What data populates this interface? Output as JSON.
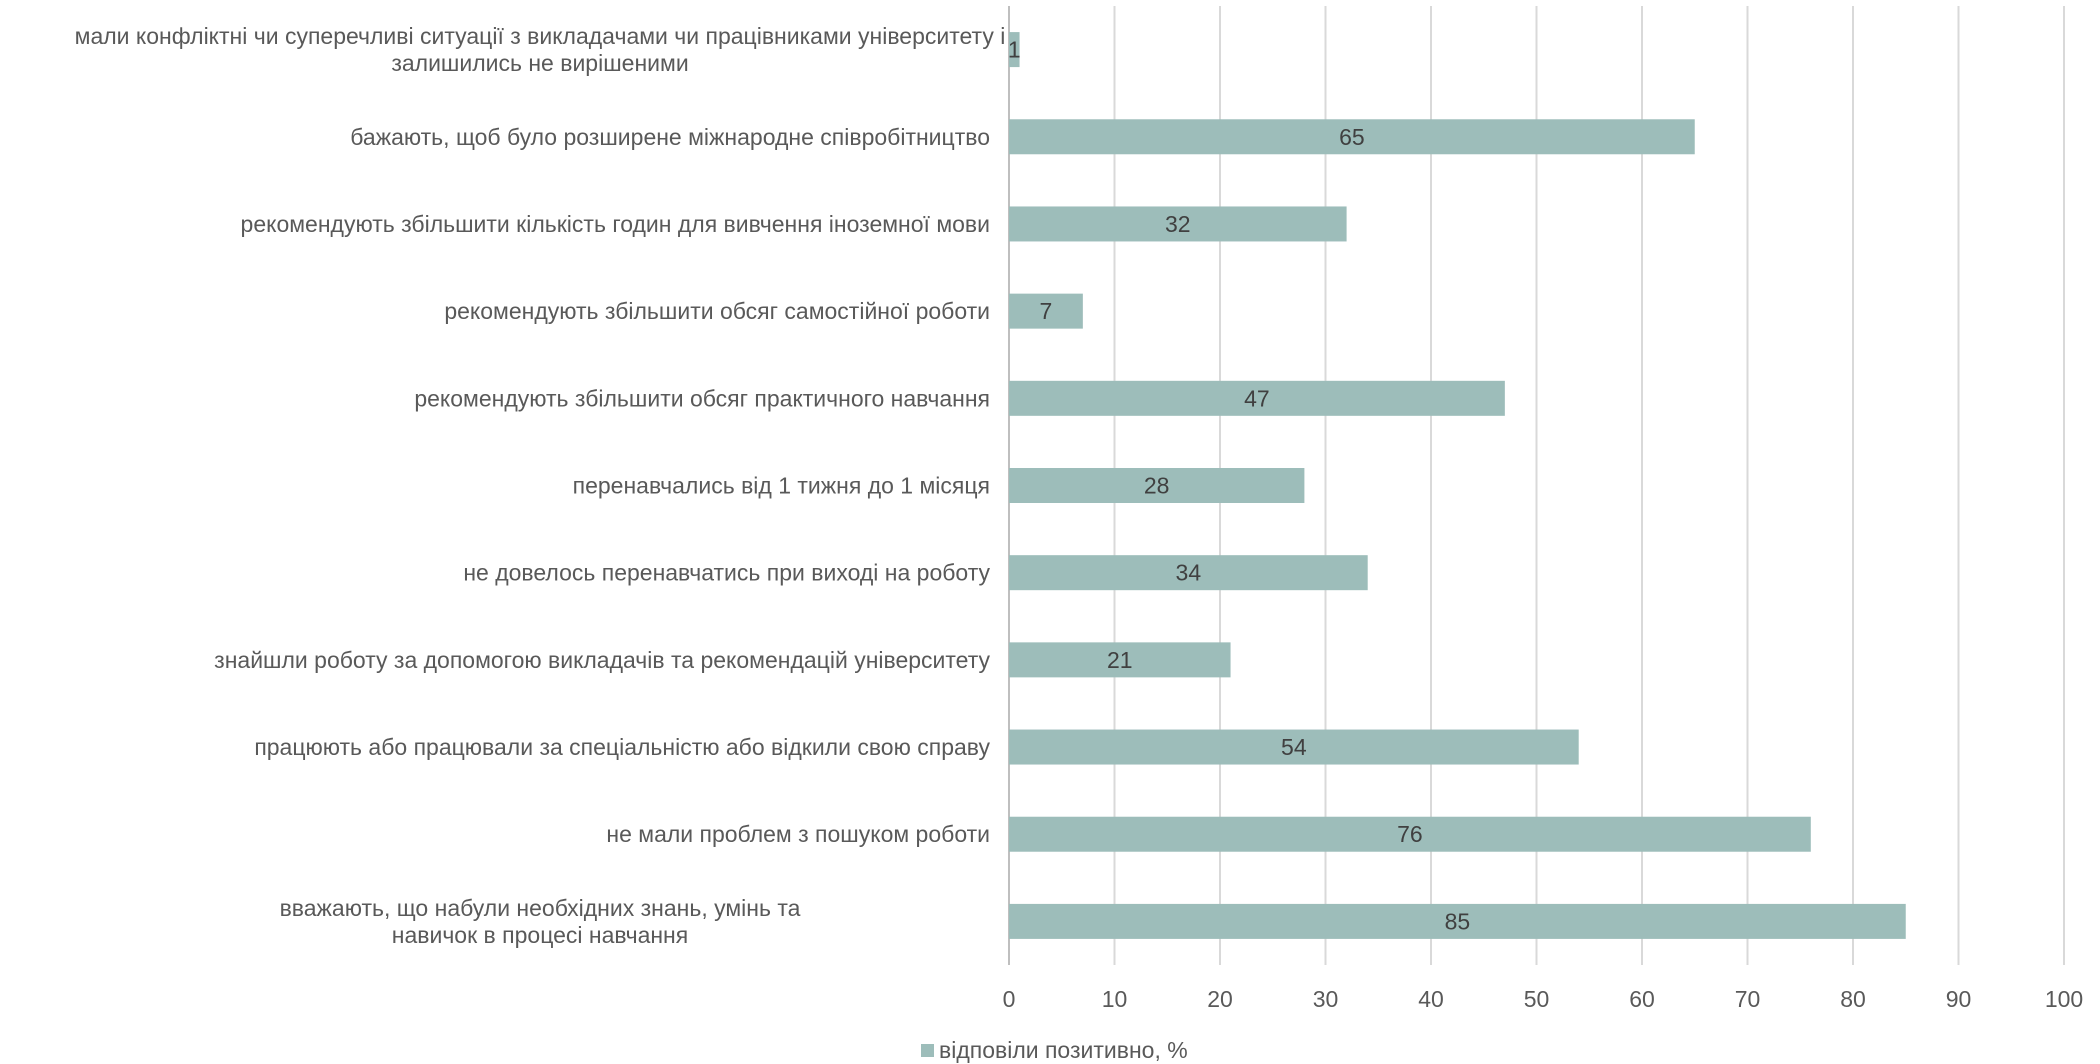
{
  "chart_data": {
    "type": "bar",
    "orientation": "horizontal",
    "categories": [
      "мали конфліктні чи суперечливі ситуації з викладачами чи працівниками університету і залишились не вирішеними",
      "бажають, щоб було розширене міжнародне співробітництво",
      "рекомендують збільшити кількість годин для вивчення іноземної мови",
      "рекомендують збільшити обсяг самостійної роботи",
      "рекомендують збільшити обсяг практичного навчання",
      "перенавчались від 1 тижня до 1 місяця",
      "не довелось перенавчатись при виході на роботу",
      "знайшли роботу за допомогою викладачів та рекомендацій університету",
      "працюють або працювали за спеціальністю або відкили свою справу",
      "не мали проблем з пошуком роботи",
      "вважають, що набули необхідних знань, умінь та навичок в процесі навчання"
    ],
    "category_lines": [
      [
        "мали конфліктні чи суперечливі ситуації з викладачами чи працівниками університету і",
        "залишились не вирішеними"
      ],
      [
        "бажають, щоб було розширене міжнародне співробітництво"
      ],
      [
        "рекомендують збільшити кількість годин для вивчення іноземної мови"
      ],
      [
        "рекомендують збільшити обсяг самостійної роботи"
      ],
      [
        "рекомендують збільшити обсяг практичного навчання"
      ],
      [
        "перенавчались від 1 тижня до 1 місяця"
      ],
      [
        "не довелось перенавчатись при виході на роботу"
      ],
      [
        "знайшли роботу за допомогою викладачів та рекомендацій університету"
      ],
      [
        "працюють або працювали за спеціальністю або відкили свою справу"
      ],
      [
        "не мали проблем з пошуком роботи"
      ],
      [
        "вважають, що набули необхідних знань, умінь та",
        "навичок в процесі навчання"
      ]
    ],
    "series": [
      {
        "name": "відповіли позитивно, %",
        "values": [
          1,
          65,
          32,
          7,
          47,
          28,
          34,
          21,
          54,
          76,
          85
        ],
        "color": "#9dbdba"
      }
    ],
    "xlim": [
      0,
      100
    ],
    "xticks": [
      0,
      10,
      20,
      30,
      40,
      50,
      60,
      70,
      80,
      90,
      100
    ],
    "grid": "vertical",
    "data_labels": true,
    "legend_position": "bottom"
  },
  "colors": {
    "bar": "#9dbdba",
    "grid": "#d9d9d9",
    "axis": "#bfbfbf"
  }
}
